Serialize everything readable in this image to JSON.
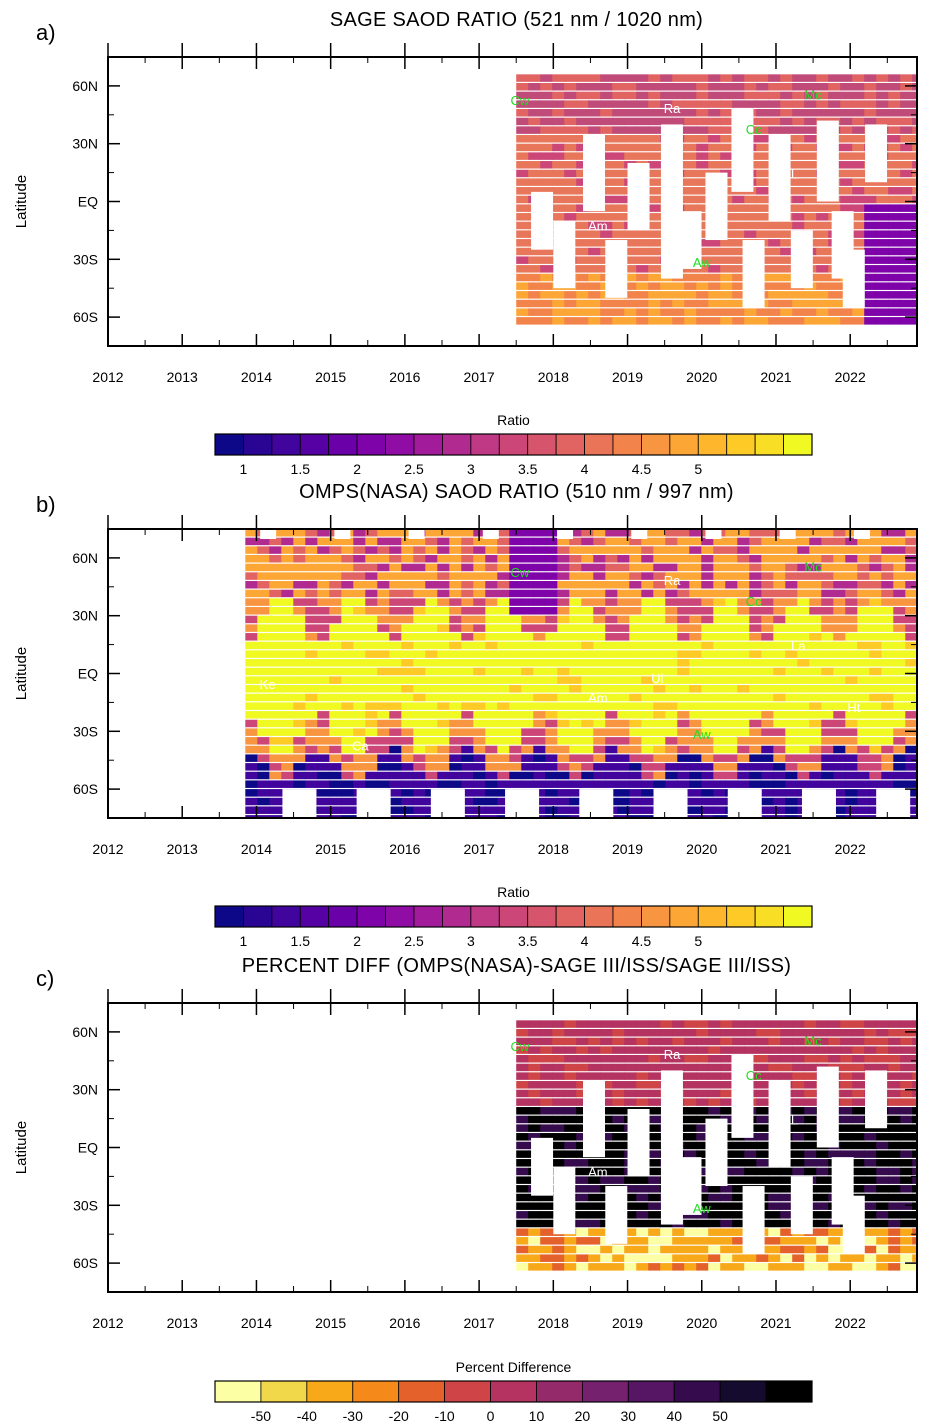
{
  "chart_data": [
    {
      "type": "heatmap",
      "panel_letter": "a)",
      "title": "SAGE SAOD RATIO (521 nm / 1020 nm)",
      "ylabel": "Latitude",
      "x_ticks": [
        "2012",
        "2013",
        "2014",
        "2015",
        "2016",
        "2017",
        "2018",
        "2019",
        "2020",
        "2021",
        "2022"
      ],
      "y_ticks": [
        "60N",
        "30N",
        "EQ",
        "30S",
        "60S"
      ],
      "xlim": [
        2012,
        2022.9
      ],
      "ylim": [
        -75,
        75
      ],
      "data_coverage": {
        "start_year": 2017.5,
        "end_year": 2022.9,
        "lat_range": [
          -62,
          66
        ]
      },
      "events": [
        {
          "label": "Cw",
          "year": 2017.55,
          "lat": 50,
          "color": "#22dd22"
        },
        {
          "label": "Ra",
          "year": 2019.6,
          "lat": 46,
          "color": "#ffffff"
        },
        {
          "label": "Cc",
          "year": 2020.7,
          "lat": 35,
          "color": "#22dd22"
        },
        {
          "label": "Mc",
          "year": 2021.5,
          "lat": 53,
          "color": "#22dd22"
        },
        {
          "label": "L",
          "year": 2021.25,
          "lat": 12,
          "color": "#ffffff"
        },
        {
          "label": "Am",
          "year": 2018.6,
          "lat": -15,
          "color": "#ffffff"
        },
        {
          "label": "Aw",
          "year": 2020.0,
          "lat": -34,
          "color": "#22dd22"
        }
      ],
      "colorbar": {
        "title": "Ratio",
        "labels": [
          "1",
          "1.5",
          "2",
          "2.5",
          "3",
          "3.5",
          "4",
          "4.5",
          "5"
        ],
        "colors": [
          "#0d0887",
          "#2a0593",
          "#41049d",
          "#5601a4",
          "#6a00a8",
          "#7e03a8",
          "#8f0da4",
          "#a11b9b",
          "#b12a90",
          "#bf3984",
          "#cc4778",
          "#d6556d",
          "#e16462",
          "#ea7457",
          "#f2844b",
          "#f89540",
          "#fca636",
          "#feb72d",
          "#fdca26",
          "#f8df25",
          "#f0f921"
        ]
      },
      "fill_colors": {
        "dominant": "#e8765a",
        "north": "#c04a78",
        "south_low": "#fca636",
        "southern_edge": "#7e03a8"
      }
    },
    {
      "type": "heatmap",
      "panel_letter": "b)",
      "title": "OMPS(NASA) SAOD RATIO (510 nm / 997 nm)",
      "ylabel": "Latitude",
      "x_ticks": [
        "2012",
        "2013",
        "2014",
        "2015",
        "2016",
        "2017",
        "2018",
        "2019",
        "2020",
        "2021",
        "2022"
      ],
      "y_ticks": [
        "60N",
        "30N",
        "EQ",
        "30S",
        "60S"
      ],
      "xlim": [
        2012,
        2022.9
      ],
      "ylim": [
        -75,
        75
      ],
      "data_coverage": {
        "start_year": 2013.85,
        "end_year": 2022.9,
        "lat_range": [
          -75,
          75
        ]
      },
      "events": [
        {
          "label": "Ke",
          "year": 2014.15,
          "lat": -8,
          "color": "#ffffff"
        },
        {
          "label": "Ca",
          "year": 2015.4,
          "lat": -40,
          "color": "#ffffff"
        },
        {
          "label": "Cw",
          "year": 2017.55,
          "lat": 50,
          "color": "#22dd22"
        },
        {
          "label": "Ra",
          "year": 2019.6,
          "lat": 46,
          "color": "#ffffff"
        },
        {
          "label": "Cc",
          "year": 2020.7,
          "lat": 35,
          "color": "#22dd22"
        },
        {
          "label": "Mc",
          "year": 2021.5,
          "lat": 53,
          "color": "#22dd22"
        },
        {
          "label": "La",
          "year": 2021.3,
          "lat": 12,
          "color": "#ffffff"
        },
        {
          "label": "Ul",
          "year": 2019.4,
          "lat": -5,
          "color": "#ffffff"
        },
        {
          "label": "Am",
          "year": 2018.6,
          "lat": -15,
          "color": "#ffffff"
        },
        {
          "label": "Aw",
          "year": 2020.0,
          "lat": -34,
          "color": "#22dd22"
        },
        {
          "label": "Ht",
          "year": 2022.05,
          "lat": -20,
          "color": "#ffffff"
        }
      ],
      "colorbar": {
        "title": "Ratio",
        "labels": [
          "1",
          "1.5",
          "2",
          "2.5",
          "3",
          "3.5",
          "4",
          "4.5",
          "5"
        ],
        "colors": [
          "#0d0887",
          "#2a0593",
          "#41049d",
          "#5601a4",
          "#6a00a8",
          "#7e03a8",
          "#8f0da4",
          "#a11b9b",
          "#b12a90",
          "#bf3984",
          "#cc4778",
          "#d6556d",
          "#e16462",
          "#ea7457",
          "#f2844b",
          "#f89540",
          "#fca636",
          "#feb72d",
          "#fdca26",
          "#f8df25",
          "#f0f921"
        ]
      },
      "fill_colors": {
        "tropics": "#f0f921",
        "midlat": "#fca636",
        "polar_south": "#41049d"
      }
    },
    {
      "type": "heatmap",
      "panel_letter": "c)",
      "title": "PERCENT DIFF (OMPS(NASA)-SAGE III/ISS/SAGE III/ISS)",
      "ylabel": "Latitude",
      "x_ticks": [
        "2012",
        "2013",
        "2014",
        "2015",
        "2016",
        "2017",
        "2018",
        "2019",
        "2020",
        "2021",
        "2022"
      ],
      "y_ticks": [
        "60N",
        "30N",
        "EQ",
        "30S",
        "60S"
      ],
      "xlim": [
        2012,
        2022.9
      ],
      "ylim": [
        -75,
        75
      ],
      "data_coverage": {
        "start_year": 2017.5,
        "end_year": 2022.9,
        "lat_range": [
          -62,
          66
        ]
      },
      "events": [
        {
          "label": "Cw",
          "year": 2017.55,
          "lat": 50,
          "color": "#22dd22"
        },
        {
          "label": "Ra",
          "year": 2019.6,
          "lat": 46,
          "color": "#ffffff"
        },
        {
          "label": "Cc",
          "year": 2020.7,
          "lat": 35,
          "color": "#22dd22"
        },
        {
          "label": "Mc",
          "year": 2021.5,
          "lat": 53,
          "color": "#22dd22"
        },
        {
          "label": "L",
          "year": 2021.25,
          "lat": 12,
          "color": "#ffffff"
        },
        {
          "label": "Am",
          "year": 2018.6,
          "lat": -15,
          "color": "#ffffff"
        },
        {
          "label": "Aw",
          "year": 2020.0,
          "lat": -34,
          "color": "#22dd22"
        }
      ],
      "colorbar": {
        "title": "Percent Difference",
        "labels": [
          "-50",
          "-40",
          "-30",
          "-20",
          "-10",
          "0",
          "10",
          "20",
          "30",
          "40",
          "50"
        ],
        "colors": [
          "#fcffa4",
          "#f1d74a",
          "#f8a91a",
          "#f58a1b",
          "#e5612b",
          "#cf4446",
          "#b43360",
          "#952a6b",
          "#76216d",
          "#571664",
          "#350b4e",
          "#140b2e",
          "#000000"
        ]
      },
      "fill_colors": {
        "north": "#b43360",
        "south_edge": "#f8a91a",
        "tropics": "#000000"
      }
    }
  ]
}
